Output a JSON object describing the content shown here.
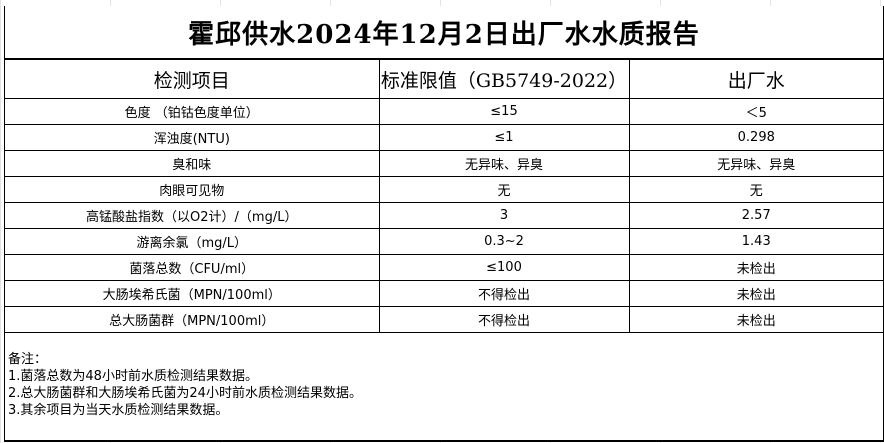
{
  "title": "霍邱供水2024年12月2日出厂水水质报告",
  "headers": [
    "检测项目",
    "标准限值（GB5749-2022）",
    "出厂水"
  ],
  "rows": [
    [
      "色度 （铂钴色度单位）",
      "≤15",
      "＜5"
    ],
    [
      "浑浊度(NTU)",
      "≤1",
      "0.298"
    ],
    [
      "臭和味",
      "无异味、异臭",
      "无异味、异臭"
    ],
    [
      "肉眼可见物",
      "无",
      "无"
    ],
    [
      "高锰酸盐指数（以O2计）/（mg/L）",
      "3",
      "2.57"
    ],
    [
      "游离余氯（mg/L）",
      "0.3~2",
      "1.43"
    ],
    [
      "菌落总数（CFU/ml）",
      "≤100",
      "未检出"
    ],
    [
      "大肠埃希氏菌（MPN/100ml）",
      "不得检出",
      "未检出"
    ],
    [
      "总大肠菌群（MPN/100ml）",
      "不得检出",
      "未检出"
    ]
  ],
  "notes": {
    "heading": "备注：",
    "lines": [
      "1.菌落总数为48小时前水质检测结果数据。",
      "2.总大肠菌群和大肠埃希氏菌为24小时前水质检测结果数据。",
      "3.其余项目为当天水质检测结果数据。"
    ]
  }
}
